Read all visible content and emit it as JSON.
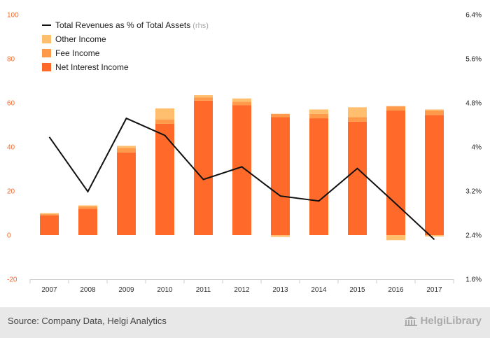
{
  "chart_data": {
    "type": "bar",
    "stacked": true,
    "categories": [
      "2007",
      "2008",
      "2009",
      "2010",
      "2011",
      "2012",
      "2013",
      "2014",
      "2015",
      "2016",
      "2017"
    ],
    "series": [
      {
        "name": "Net Interest Income",
        "axis": "left",
        "color": "#ff6a2a",
        "values": [
          9.0,
          12.0,
          37.5,
          50.5,
          61.0,
          59.0,
          53.5,
          53.0,
          51.5,
          56.5,
          54.5
        ]
      },
      {
        "name": "Fee Income",
        "axis": "left",
        "color": "#ff9a4a",
        "values": [
          0.5,
          1.0,
          2.0,
          2.0,
          1.5,
          1.5,
          1.5,
          2.0,
          2.0,
          2.0,
          2.0
        ]
      },
      {
        "name": "Other Income",
        "axis": "left",
        "color": "#ffbf6e",
        "values": [
          0.5,
          0.5,
          1.0,
          5.0,
          1.0,
          1.5,
          0.0,
          2.0,
          4.5,
          0.0,
          0.5
        ]
      },
      {
        "name": "Other Income (negative)",
        "axis": "left",
        "color": "#ffbf6e",
        "hidden_in_legend": true,
        "values": [
          0,
          0,
          0,
          0,
          0,
          0,
          -0.8,
          0,
          0,
          -2.3,
          -0.6
        ]
      },
      {
        "name": "Total Revenues as % of Total Assets",
        "axis": "right",
        "type": "line",
        "color": "#111111",
        "values": [
          4.18,
          3.19,
          4.52,
          4.21,
          3.41,
          3.64,
          3.11,
          3.02,
          3.61,
          2.97,
          2.32
        ]
      }
    ],
    "ylim": [
      -20,
      100
    ],
    "y_ticks": [
      "-20",
      "0",
      "20",
      "40",
      "60",
      "80",
      "100"
    ],
    "y2lim": [
      1.6,
      6.4
    ],
    "y2_ticks": [
      "1.6%",
      "2.4%",
      "3.2%",
      "4%",
      "4.8%",
      "5.6%",
      "6.4%"
    ],
    "legend": [
      {
        "label": "Total Revenues as % of Total Assets",
        "suffix": "(rhs)",
        "kind": "line",
        "color": "#111111"
      },
      {
        "label": "Other Income",
        "kind": "box",
        "color": "#ffbf6e"
      },
      {
        "label": "Fee Income",
        "kind": "box",
        "color": "#ff9a4a"
      },
      {
        "label": "Net Interest Income",
        "kind": "box",
        "color": "#ff6a2a"
      }
    ],
    "legend_position": "top-left",
    "grid": false
  },
  "footer": {
    "source": "Source: Company Data, Helgi Analytics",
    "brand": "HelgiLibrary"
  }
}
